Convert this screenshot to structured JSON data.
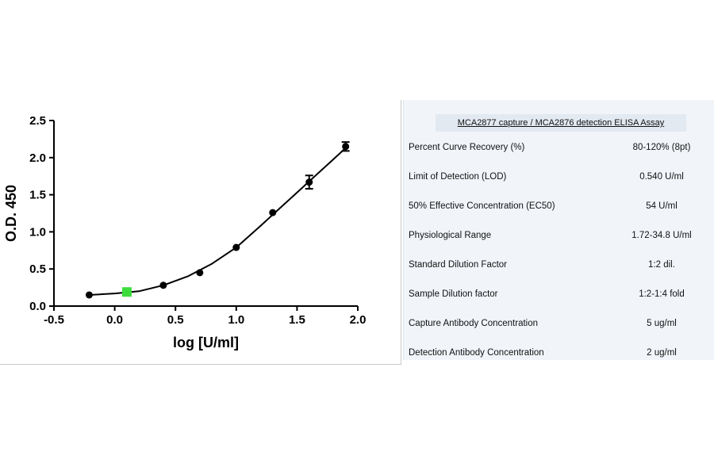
{
  "chart_data": {
    "type": "scatter",
    "xlabel": "log [U/ml]",
    "ylabel": "O.D. 450",
    "xlim": [
      -0.5,
      2.0
    ],
    "ylim": [
      0,
      2.5
    ],
    "xticks": [
      "-0.5",
      "0.0",
      "0.5",
      "1.0",
      "1.5",
      "2.0"
    ],
    "yticks": [
      "0.0",
      "0.5",
      "1.0",
      "1.5",
      "2.0",
      "2.5"
    ],
    "grid": false,
    "points": [
      {
        "x": -0.21,
        "y": 0.15,
        "err": 0
      },
      {
        "x": 0.1,
        "y": 0.19,
        "err": 0,
        "highlight": true
      },
      {
        "x": 0.4,
        "y": 0.28,
        "err": 0
      },
      {
        "x": 0.7,
        "y": 0.45,
        "err": 0
      },
      {
        "x": 1.0,
        "y": 0.79,
        "err": 0
      },
      {
        "x": 1.3,
        "y": 1.26,
        "err": 0
      },
      {
        "x": 1.6,
        "y": 1.67,
        "err": 0.09
      },
      {
        "x": 1.9,
        "y": 2.15,
        "err": 0.06
      }
    ],
    "curve": {
      "x": [
        -0.21,
        0.0,
        0.2,
        0.4,
        0.6,
        0.8,
        1.0,
        1.2,
        1.4,
        1.6,
        1.8,
        1.9
      ],
      "y": [
        0.15,
        0.17,
        0.2,
        0.28,
        0.4,
        0.57,
        0.79,
        1.08,
        1.38,
        1.68,
        1.98,
        2.13
      ]
    },
    "colors": {
      "marker": "#000000",
      "highlight": "#3ddc3d",
      "line": "#000000"
    }
  },
  "table": {
    "title": "MCA2877 capture / MCA2876 detection ELISA Assay",
    "rows": [
      {
        "param": "Percent Curve Recovery (%)",
        "value": "80-120% (8pt)"
      },
      {
        "param": "Limit of Detection (LOD)",
        "value": "0.540 U/ml"
      },
      {
        "param": "50% Effective Concentration (EC50)",
        "value": "54 U/ml"
      },
      {
        "param": "Physiological Range",
        "value": "1.72-34.8 U/ml"
      },
      {
        "param": "Standard Dilution Factor",
        "value": "1:2 dil."
      },
      {
        "param": "Sample Dilution factor",
        "value": "1:2-1:4 fold"
      },
      {
        "param": "Capture Antibody Concentration",
        "value": "5 ug/ml"
      },
      {
        "param": "Detection Antibody Concentration",
        "value": "2 ug/ml"
      }
    ]
  }
}
